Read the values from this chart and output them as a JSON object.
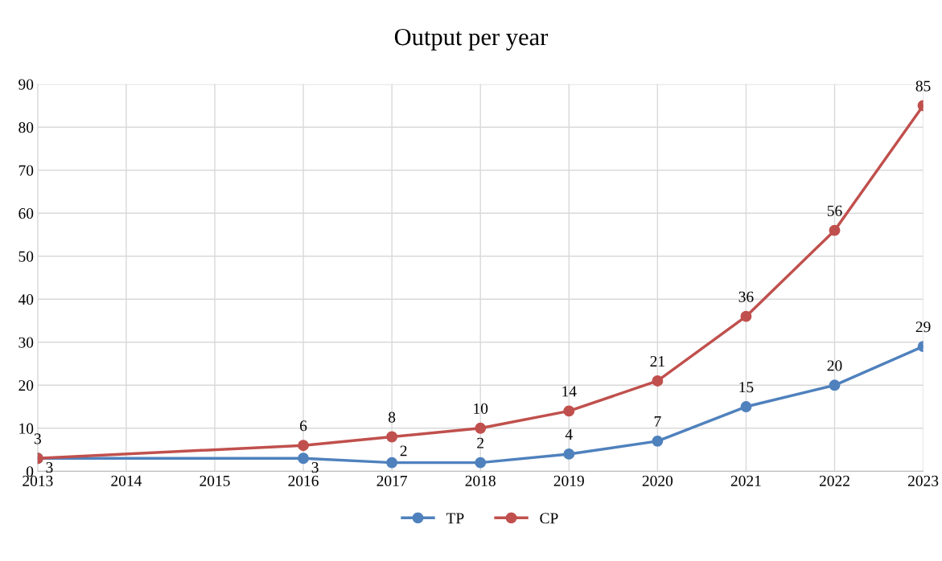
{
  "chart_data": {
    "type": "line",
    "title": "Output per year",
    "x": [
      2013,
      2016,
      2017,
      2018,
      2019,
      2020,
      2021,
      2022,
      2023
    ],
    "series": [
      {
        "name": "TP",
        "color": "#4f81bd",
        "values": [
          3,
          3,
          2,
          2,
          4,
          7,
          15,
          20,
          29
        ]
      },
      {
        "name": "CP",
        "color": "#c0504d",
        "values": [
          3,
          6,
          8,
          10,
          14,
          21,
          36,
          56,
          85
        ]
      }
    ],
    "xlim": [
      2013,
      2023
    ],
    "xticks": [
      2013,
      2014,
      2015,
      2016,
      2017,
      2018,
      2019,
      2020,
      2021,
      2022,
      2023
    ],
    "ylim": [
      0,
      90
    ],
    "yticks": [
      0,
      10,
      20,
      30,
      40,
      50,
      60,
      70,
      80,
      90
    ],
    "grid": true,
    "legend": "bottom",
    "marker": "circle",
    "line_style": "solid",
    "data_labels": true
  }
}
